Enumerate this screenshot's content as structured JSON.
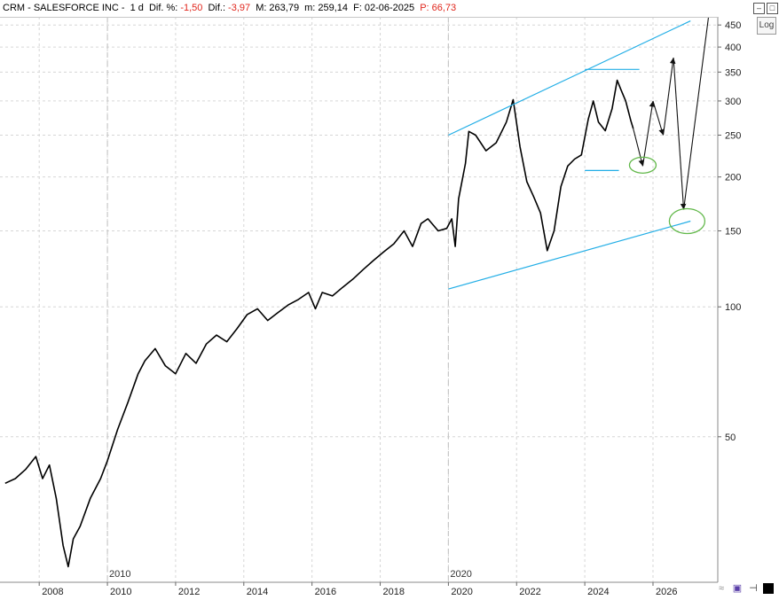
{
  "header": {
    "symbol": "CRM - SALESFORCE INC -",
    "period": "1 d",
    "dif_pct_label": "Dif. %:",
    "dif_pct_value": "-1,50",
    "dif_label": "Dif.:",
    "dif_value": "-3,97",
    "max_label": "M:",
    "max_value": "263,79",
    "min_label": "m:",
    "min_value": "259,14",
    "date_label": "F:",
    "date_value": "02-06-2025",
    "p_label": "P:",
    "p_value": "66,73"
  },
  "controls": {
    "log_label": "Log"
  },
  "chart_data": {
    "type": "line",
    "scale": "log",
    "ylim": [
      23,
      470
    ],
    "xlim": [
      2006.85,
      2027.9
    ],
    "y_ticks": [
      450,
      400,
      350,
      300,
      250,
      200,
      150,
      100,
      50
    ],
    "x_ticks": [
      "2008",
      "2010",
      "2012",
      "2014",
      "2016",
      "2018",
      "2020",
      "2022",
      "2024",
      "2026"
    ],
    "x_tick_years": [
      2008,
      2010,
      2012,
      2014,
      2016,
      2018,
      2020,
      2022,
      2024,
      2026
    ],
    "period_markers": [
      {
        "year": 2010,
        "label": "2010"
      },
      {
        "year": 2020,
        "label": "2020"
      }
    ],
    "grid": true,
    "series": [
      {
        "points": [
          [
            2007.0,
            39
          ],
          [
            2007.3,
            40
          ],
          [
            2007.6,
            42
          ],
          [
            2007.9,
            45
          ],
          [
            2008.1,
            40
          ],
          [
            2008.3,
            43
          ],
          [
            2008.5,
            36
          ],
          [
            2008.7,
            28
          ],
          [
            2008.85,
            25
          ],
          [
            2009.0,
            29
          ],
          [
            2009.2,
            31
          ],
          [
            2009.5,
            36
          ],
          [
            2009.8,
            40
          ],
          [
            2010.0,
            44
          ],
          [
            2010.3,
            52
          ],
          [
            2010.6,
            60
          ],
          [
            2010.9,
            70
          ],
          [
            2011.1,
            75
          ],
          [
            2011.4,
            80
          ],
          [
            2011.7,
            73
          ],
          [
            2012.0,
            70
          ],
          [
            2012.3,
            78
          ],
          [
            2012.6,
            74
          ],
          [
            2012.9,
            82
          ],
          [
            2013.2,
            86
          ],
          [
            2013.5,
            83
          ],
          [
            2013.8,
            89
          ],
          [
            2014.1,
            96
          ],
          [
            2014.4,
            99
          ],
          [
            2014.7,
            93
          ],
          [
            2015.0,
            97
          ],
          [
            2015.3,
            101
          ],
          [
            2015.6,
            104
          ],
          [
            2015.9,
            108
          ],
          [
            2016.1,
            99
          ],
          [
            2016.3,
            108
          ],
          [
            2016.6,
            106
          ],
          [
            2016.9,
            111
          ],
          [
            2017.2,
            116
          ],
          [
            2017.5,
            122
          ],
          [
            2017.8,
            128
          ],
          [
            2018.1,
            134
          ],
          [
            2018.4,
            140
          ],
          [
            2018.7,
            150
          ],
          [
            2018.95,
            138
          ],
          [
            2019.2,
            156
          ],
          [
            2019.4,
            160
          ],
          [
            2019.7,
            150
          ],
          [
            2019.95,
            152
          ],
          [
            2020.1,
            160
          ],
          [
            2020.2,
            138
          ],
          [
            2020.3,
            178
          ],
          [
            2020.5,
            215
          ],
          [
            2020.6,
            255
          ],
          [
            2020.8,
            250
          ],
          [
            2021.1,
            230
          ],
          [
            2021.4,
            240
          ],
          [
            2021.7,
            268
          ],
          [
            2021.9,
            302
          ],
          [
            2022.1,
            235
          ],
          [
            2022.3,
            195
          ],
          [
            2022.5,
            180
          ],
          [
            2022.7,
            165
          ],
          [
            2022.9,
            135
          ],
          [
            2023.1,
            150
          ],
          [
            2023.3,
            190
          ],
          [
            2023.5,
            212
          ],
          [
            2023.7,
            220
          ],
          [
            2023.9,
            225
          ],
          [
            2024.1,
            272
          ],
          [
            2024.25,
            300
          ],
          [
            2024.4,
            268
          ],
          [
            2024.6,
            256
          ],
          [
            2024.8,
            288
          ],
          [
            2024.95,
            335
          ],
          [
            2025.05,
            320
          ],
          [
            2025.2,
            300
          ],
          [
            2025.35,
            270
          ],
          [
            2025.42,
            259
          ]
        ]
      }
    ],
    "channel_lines": [
      {
        "from": [
          2020.0,
          250
        ],
        "to": [
          2027.1,
          460
        ]
      },
      {
        "from": [
          2020.0,
          110
        ],
        "to": [
          2027.1,
          158
        ]
      },
      {
        "from": [
          2024.0,
          355
        ],
        "to": [
          2025.6,
          355
        ]
      },
      {
        "from": [
          2024.0,
          207
        ],
        "to": [
          2025.0,
          207
        ]
      }
    ],
    "projection_path": [
      [
        2025.42,
        259
      ],
      [
        2025.7,
        212
      ],
      [
        2026.0,
        300
      ],
      [
        2026.3,
        250
      ],
      [
        2026.6,
        378
      ],
      [
        2026.9,
        168
      ],
      [
        2027.7,
        520
      ]
    ],
    "target_circles": [
      {
        "x": 2025.7,
        "y": 213
      },
      {
        "x": 2027.0,
        "y": 158
      }
    ],
    "colors": {
      "price": "#000000",
      "channel": "#22aee6",
      "projection": "#111111",
      "circle": "#62b84a",
      "grid": "#d6d6d6",
      "marker_line": "#c8c8c8"
    }
  }
}
